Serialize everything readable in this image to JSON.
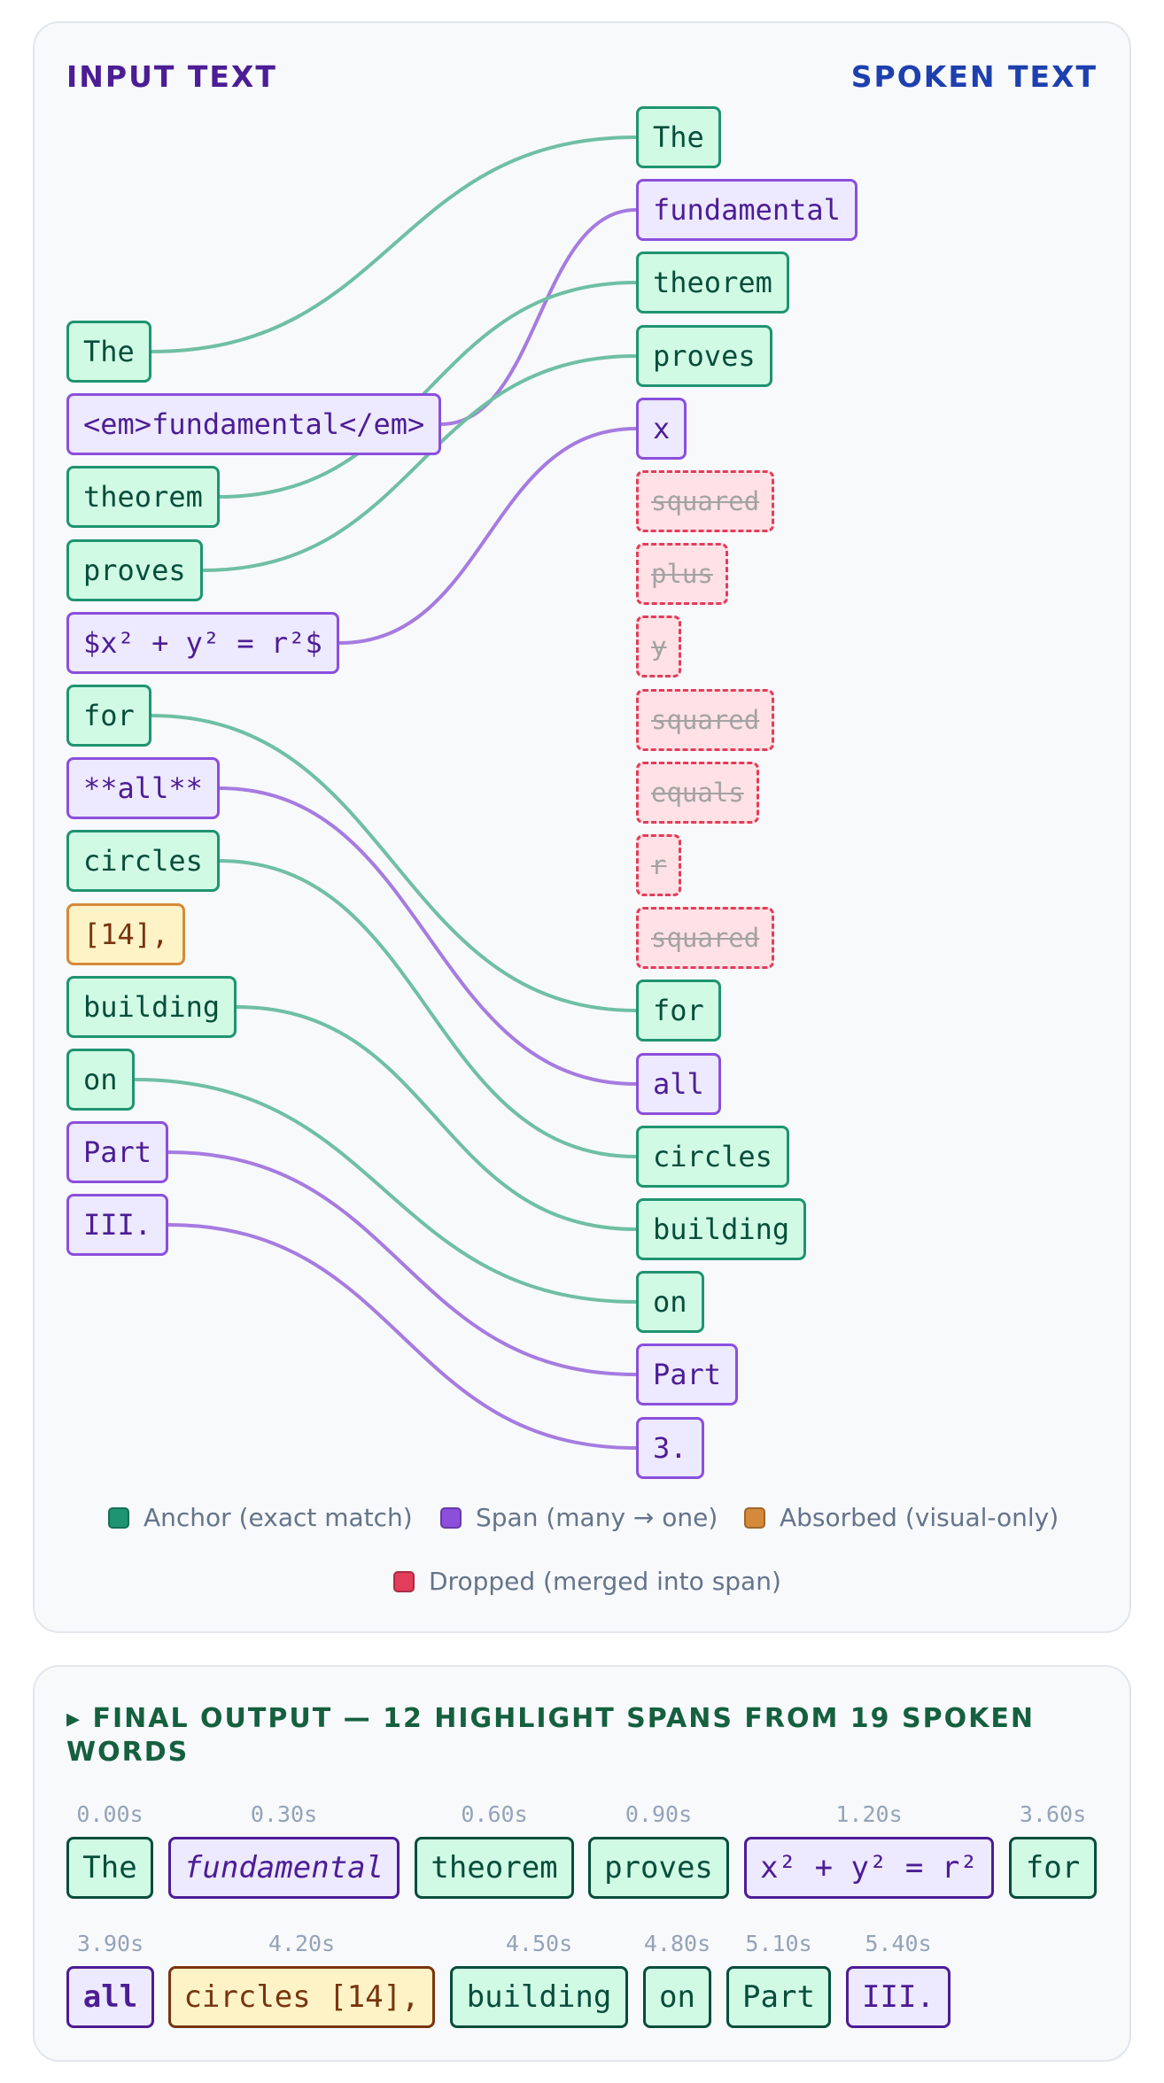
{
  "header": {
    "input_title": "INPUT TEXT",
    "spoken_title": "SPOKEN TEXT"
  },
  "colors": {
    "anchor": "#1f9470",
    "span": "#8b4fdc",
    "absorbed": "#d48a3a",
    "dropped": "#e23d5a",
    "anchor_link": "#6fbfa3",
    "span_link": "#a67be0"
  },
  "input_tokens": [
    {
      "text": "The",
      "kind": "anchor"
    },
    {
      "text": "<em>fundamental</em>",
      "kind": "span"
    },
    {
      "text": "theorem",
      "kind": "anchor"
    },
    {
      "text": "proves",
      "kind": "anchor"
    },
    {
      "text": "$x² + y² = r²$",
      "kind": "span"
    },
    {
      "text": "for",
      "kind": "anchor"
    },
    {
      "text": "**all**",
      "kind": "span"
    },
    {
      "text": "circles",
      "kind": "anchor"
    },
    {
      "text": "[14],",
      "kind": "absorbed"
    },
    {
      "text": "building",
      "kind": "anchor"
    },
    {
      "text": "on",
      "kind": "anchor"
    },
    {
      "text": "Part",
      "kind": "span"
    },
    {
      "text": "III.",
      "kind": "span"
    }
  ],
  "spoken_tokens": [
    {
      "text": "The",
      "kind": "anchor"
    },
    {
      "text": "fundamental",
      "kind": "span"
    },
    {
      "text": "theorem",
      "kind": "anchor"
    },
    {
      "text": "proves",
      "kind": "anchor"
    },
    {
      "text": "x",
      "kind": "span"
    },
    {
      "text": "squared",
      "kind": "dropped"
    },
    {
      "text": "plus",
      "kind": "dropped"
    },
    {
      "text": "y",
      "kind": "dropped"
    },
    {
      "text": "squared",
      "kind": "dropped"
    },
    {
      "text": "equals",
      "kind": "dropped"
    },
    {
      "text": "r",
      "kind": "dropped"
    },
    {
      "text": "squared",
      "kind": "dropped"
    },
    {
      "text": "for",
      "kind": "anchor"
    },
    {
      "text": "all",
      "kind": "span"
    },
    {
      "text": "circles",
      "kind": "anchor"
    },
    {
      "text": "building",
      "kind": "anchor"
    },
    {
      "text": "on",
      "kind": "anchor"
    },
    {
      "text": "Part",
      "kind": "span"
    },
    {
      "text": "3.",
      "kind": "span"
    }
  ],
  "links": [
    {
      "from": 0,
      "to": 0,
      "kind": "anchor"
    },
    {
      "from": 1,
      "to": 1,
      "kind": "span"
    },
    {
      "from": 2,
      "to": 2,
      "kind": "anchor"
    },
    {
      "from": 3,
      "to": 3,
      "kind": "anchor"
    },
    {
      "from": 4,
      "to": 4,
      "kind": "span"
    },
    {
      "from": 5,
      "to": 12,
      "kind": "anchor"
    },
    {
      "from": 6,
      "to": 13,
      "kind": "span"
    },
    {
      "from": 7,
      "to": 14,
      "kind": "anchor"
    },
    {
      "from": 9,
      "to": 15,
      "kind": "anchor"
    },
    {
      "from": 10,
      "to": 16,
      "kind": "anchor"
    },
    {
      "from": 11,
      "to": 17,
      "kind": "span"
    },
    {
      "from": 12,
      "to": 18,
      "kind": "span"
    }
  ],
  "legend": [
    {
      "label": "Anchor (exact match)",
      "kind": "anchor"
    },
    {
      "label": "Span (many → one)",
      "kind": "span"
    },
    {
      "label": "Absorbed (visual-only)",
      "kind": "absorbed"
    },
    {
      "label": "Dropped (merged into span)",
      "kind": "dropped"
    }
  ],
  "final": {
    "title": "▸ FINAL OUTPUT — 12 HIGHLIGHT SPANS FROM 19 SPOKEN WORDS",
    "spans": [
      {
        "time": "0.00s",
        "text": "The",
        "kind": "anchor"
      },
      {
        "time": "0.30s",
        "text": "fundamental",
        "kind": "span",
        "style": "italic"
      },
      {
        "time": "0.60s",
        "text": "theorem",
        "kind": "anchor"
      },
      {
        "time": "0.90s",
        "text": "proves",
        "kind": "anchor"
      },
      {
        "time": "1.20s",
        "text": "x² + y² = r²",
        "kind": "span"
      },
      {
        "time": "3.60s",
        "text": "for",
        "kind": "anchor"
      },
      {
        "time": "3.90s",
        "text": "all",
        "kind": "span",
        "style": "bold"
      },
      {
        "time": "4.20s",
        "text": "circles [14],",
        "kind": "absorbed"
      },
      {
        "time": "4.50s",
        "text": "building",
        "kind": "anchor"
      },
      {
        "time": "4.80s",
        "text": "on",
        "kind": "anchor"
      },
      {
        "time": "5.10s",
        "text": "Part",
        "kind": "anchor"
      },
      {
        "time": "5.40s",
        "text": "III.",
        "kind": "span"
      }
    ]
  }
}
